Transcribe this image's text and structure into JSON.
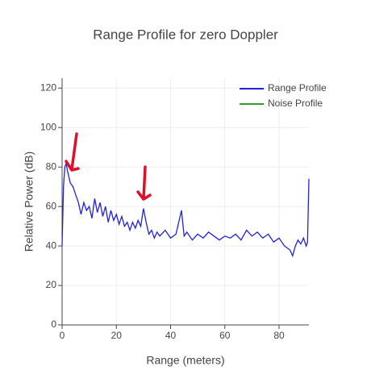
{
  "chart_data": {
    "type": "line",
    "title": "Range Profile for zero Doppler",
    "x_label": "Range (meters)",
    "y_label": "Relative Power (dB)",
    "x": [
      0,
      0.5,
      1,
      1.5,
      2,
      3,
      4,
      5,
      6,
      7,
      8,
      9,
      10,
      11,
      12,
      13,
      14,
      15,
      16,
      17,
      18,
      19,
      20,
      21,
      22,
      23,
      24,
      25,
      26,
      27,
      28,
      29,
      30,
      31,
      32,
      33,
      34,
      35,
      36,
      38,
      40,
      42,
      44,
      45,
      46,
      48,
      50,
      52,
      54,
      56,
      58,
      60,
      62,
      64,
      66,
      68,
      70,
      72,
      74,
      76,
      78,
      80,
      82,
      84,
      85,
      86,
      87,
      88,
      89,
      90,
      90.5,
      91
    ],
    "series": [
      {
        "name": "Range Profile",
        "color": "#2222dd",
        "values": [
          40,
          70,
          80,
          82,
          78,
          72,
          70,
          66,
          62,
          56,
          62,
          58,
          60,
          54,
          64,
          57,
          62,
          55,
          60,
          52,
          58,
          53,
          56,
          51,
          55,
          50,
          52,
          48,
          52,
          49,
          53,
          50,
          59,
          52,
          46,
          48,
          44,
          47,
          45,
          48,
          44,
          46,
          58,
          45,
          47,
          43,
          46,
          44,
          47,
          45,
          43,
          45,
          44,
          46,
          43,
          48,
          45,
          47,
          44,
          46,
          42,
          44,
          40,
          38,
          35,
          40,
          43,
          41,
          44,
          40,
          42,
          74
        ]
      },
      {
        "name": "Noise Profile",
        "color": "#2ca02c",
        "values": [
          null,
          null,
          null,
          null,
          null,
          null,
          null,
          null,
          null,
          null,
          null,
          null,
          null,
          null,
          null,
          null,
          null,
          null,
          null,
          null,
          null,
          null,
          null,
          null,
          null,
          null,
          null,
          null,
          null,
          null,
          null,
          null,
          null,
          null,
          null,
          null,
          null,
          null,
          null,
          null,
          null,
          null,
          null,
          null,
          null,
          null,
          null,
          null,
          null,
          null,
          null,
          null,
          null,
          null,
          null,
          null,
          null,
          null,
          null,
          null,
          null,
          null,
          null,
          null,
          null,
          null,
          null,
          null,
          null,
          null,
          null,
          null
        ]
      }
    ],
    "xlim": [
      0,
      91
    ],
    "xticks": [
      0,
      20,
      40,
      60,
      80
    ],
    "ylim": [
      0,
      125
    ],
    "yticks": [
      0,
      20,
      40,
      60,
      80,
      100,
      120
    ],
    "grid": true,
    "legend": "top-right"
  }
}
